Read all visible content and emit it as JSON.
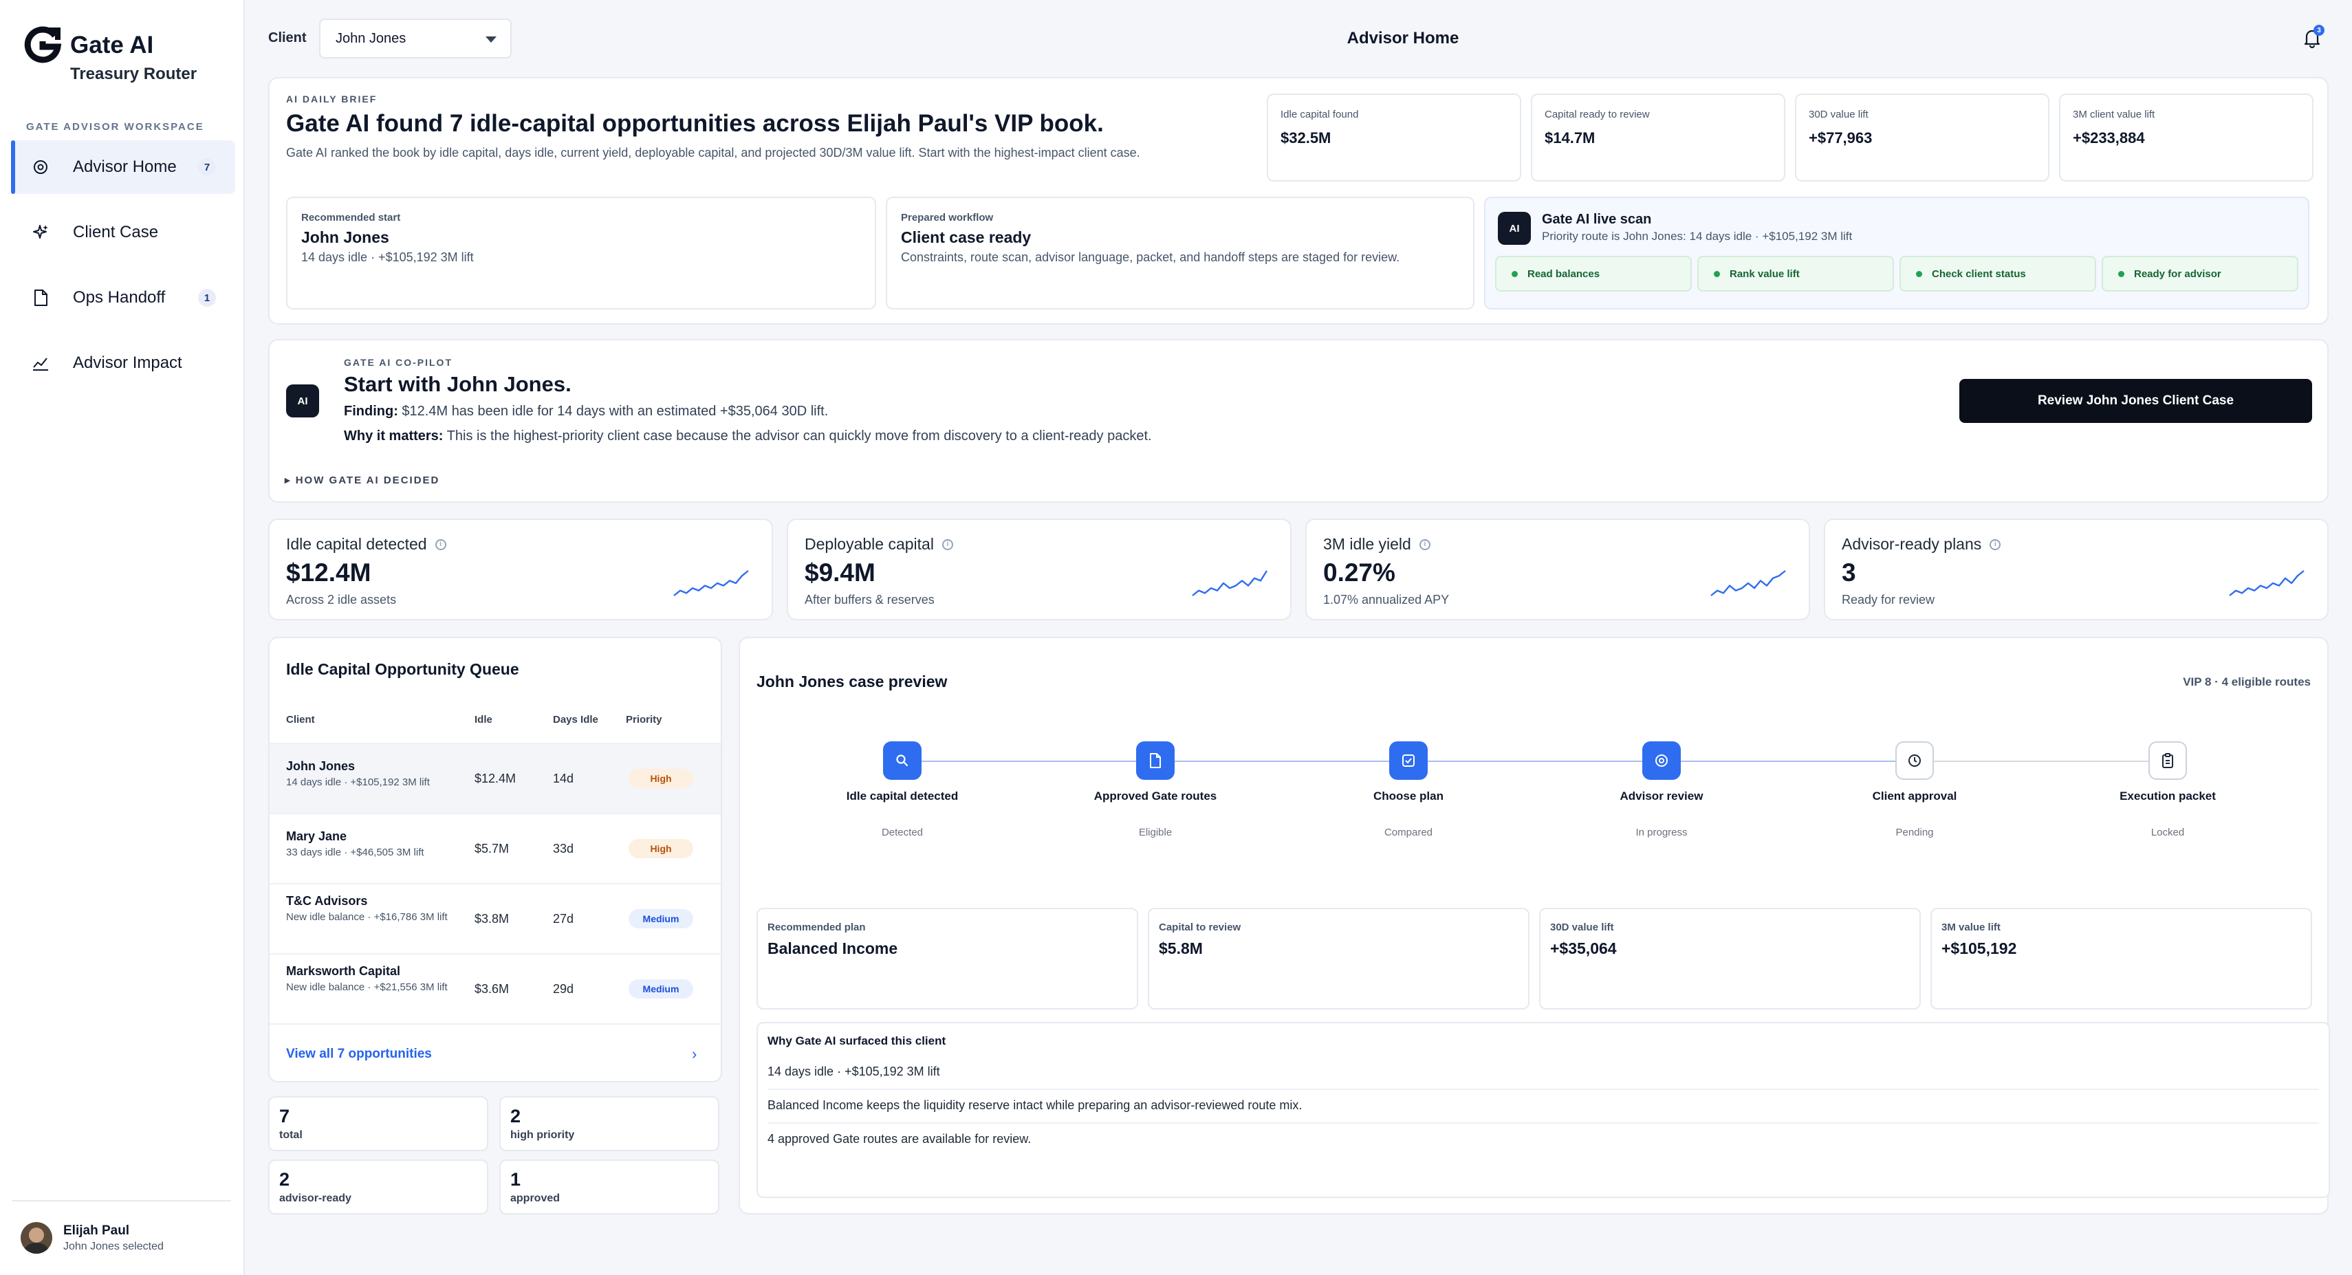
{
  "app": {
    "title": "Gate AI",
    "subtitle": "Treasury Router"
  },
  "sidebar": {
    "section_label": "GATE ADVISOR WORKSPACE",
    "items": [
      {
        "label": "Advisor Home",
        "badge": "7",
        "icon": "target-icon",
        "active": true
      },
      {
        "label": "Client Case",
        "badge": "",
        "icon": "sparkle-icon",
        "active": false
      },
      {
        "label": "Ops Handoff",
        "badge": "1",
        "icon": "document-icon",
        "active": false
      },
      {
        "label": "Advisor Impact",
        "badge": "",
        "icon": "chart-icon",
        "active": false
      }
    ],
    "user": {
      "name": "Elijah Paul",
      "sub": "John Jones selected"
    }
  },
  "topbar": {
    "client_label": "Client",
    "client_value": "John Jones",
    "page_title": "Advisor Home",
    "notification_count": "3"
  },
  "brief": {
    "eyebrow": "AI DAILY BRIEF",
    "headline": "Gate AI found 7 idle-capital opportunities across Elijah Paul's VIP book.",
    "description": "Gate AI ranked the book by idle capital, days idle, current yield, deployable capital, and projected 30D/3M value lift. Start with the highest-impact client case.",
    "metrics": [
      {
        "label": "Idle capital found",
        "value": "$32.5M"
      },
      {
        "label": "Capital ready to review",
        "value": "$14.7M"
      },
      {
        "label": "30D value lift",
        "value": "+$77,963"
      },
      {
        "label": "3M client value lift",
        "value": "+$233,884"
      }
    ],
    "recommended": {
      "label": "Recommended start",
      "value": "John Jones",
      "sub": "14 days idle · +$105,192 3M lift"
    },
    "workflow": {
      "label": "Prepared workflow",
      "value": "Client case ready",
      "sub": "Constraints, route scan, advisor language, packet, and handoff steps are staged for review."
    },
    "scan": {
      "chip": "AI",
      "title": "Gate AI live scan",
      "sub": "Priority route is John Jones: 14 days idle · +$105,192 3M lift",
      "steps": [
        "Read balances",
        "Rank value lift",
        "Check client status",
        "Ready for advisor"
      ]
    }
  },
  "copilot": {
    "chip": "AI",
    "eyebrow": "GATE AI CO-PILOT",
    "title": "Start with John Jones.",
    "finding_label": "Finding:",
    "finding": "$12.4M has been idle for 14 days with an estimated +$35,064 30D lift.",
    "why_label": "Why it matters:",
    "why": "This is the highest-priority client case because the advisor can quickly move from discovery to a client-ready packet.",
    "decided": "▸ HOW GATE AI DECIDED",
    "button": "Review John Jones Client Case"
  },
  "kpis": [
    {
      "label": "Idle capital detected",
      "value": "$12.4M",
      "sub": "Across 2 idle assets",
      "trend": [
        3,
        5,
        4,
        6,
        5,
        7,
        6,
        8,
        7,
        9,
        8,
        11,
        13
      ]
    },
    {
      "label": "Deployable capital",
      "value": "$9.4M",
      "sub": "After buffers & reserves",
      "trend": [
        3,
        5,
        4,
        6,
        5,
        8,
        6,
        7,
        9,
        7,
        10,
        9,
        13
      ]
    },
    {
      "label": "3M idle yield",
      "value": "0.27%",
      "sub": "1.07% annualized APY",
      "trend": [
        3,
        5,
        4,
        7,
        5,
        6,
        8,
        6,
        9,
        7,
        10,
        11,
        13
      ]
    },
    {
      "label": "Advisor-ready plans",
      "value": "3",
      "sub": "Ready for review",
      "trend": [
        3,
        5,
        4,
        6,
        5,
        7,
        6,
        8,
        7,
        10,
        8,
        11,
        13
      ]
    }
  ],
  "queue": {
    "title": "Idle Capital Opportunity Queue",
    "headers": [
      "Client",
      "Idle",
      "Days Idle",
      "Priority"
    ],
    "rows": [
      {
        "name": "John Jones",
        "sub": "14 days idle · +$105,192 3M lift",
        "idle": "$12.4M",
        "days": "14d",
        "priority": "High"
      },
      {
        "name": "Mary Jane",
        "sub": "33 days idle · +$46,505 3M lift",
        "idle": "$5.7M",
        "days": "33d",
        "priority": "High"
      },
      {
        "name": "T&C Advisors",
        "sub": "New idle balance · +$16,786 3M lift",
        "idle": "$3.8M",
        "days": "27d",
        "priority": "Medium"
      },
      {
        "name": "Marksworth Capital",
        "sub": "New idle balance · +$21,556 3M lift",
        "idle": "$3.6M",
        "days": "29d",
        "priority": "Medium"
      }
    ],
    "view_all": "View all 7 opportunities",
    "stats": [
      {
        "value": "7",
        "label": "total"
      },
      {
        "value": "2",
        "label": "high priority"
      },
      {
        "value": "2",
        "label": "advisor-ready"
      },
      {
        "value": "1",
        "label": "approved"
      }
    ]
  },
  "case": {
    "title": "John Jones case preview",
    "meta": "VIP 8 · 4 eligible routes",
    "steps": [
      {
        "name": "Idle capital detected",
        "status": "Detected",
        "icon": "search-icon",
        "done": true
      },
      {
        "name": "Approved Gate routes",
        "status": "Eligible",
        "icon": "document-icon",
        "done": true
      },
      {
        "name": "Choose plan",
        "status": "Compared",
        "icon": "checkbox-icon",
        "done": true
      },
      {
        "name": "Advisor review",
        "status": "In progress",
        "icon": "target-icon",
        "done": true
      },
      {
        "name": "Client approval",
        "status": "Pending",
        "icon": "clock-icon",
        "done": false
      },
      {
        "name": "Execution packet",
        "status": "Locked",
        "icon": "clipboard-icon",
        "done": false
      }
    ],
    "plan": [
      {
        "label": "Recommended plan",
        "value": "Balanced Income"
      },
      {
        "label": "Capital to review",
        "value": "$5.8M"
      },
      {
        "label": "30D value lift",
        "value": "+$35,064"
      },
      {
        "label": "3M value lift",
        "value": "+$105,192"
      }
    ],
    "why_title": "Why Gate AI surfaced this client",
    "why_lines": [
      "14 days idle · +$105,192 3M lift",
      "Balanced Income keeps the liquidity reserve intact while preparing an advisor-reviewed route mix.",
      "4 approved Gate routes are available for review."
    ]
  }
}
